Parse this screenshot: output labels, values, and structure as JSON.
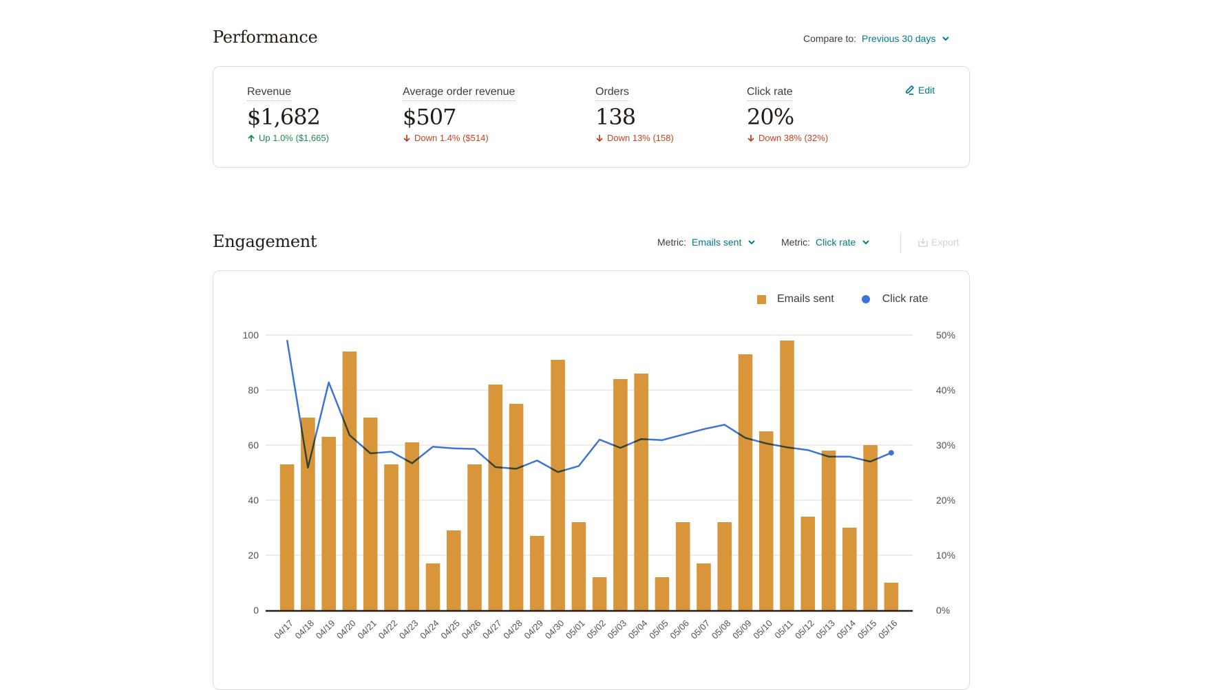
{
  "performance": {
    "title": "Performance",
    "compare_label": "Compare to:",
    "compare_value": "Previous 30 days",
    "edit_label": "Edit",
    "kpis": [
      {
        "label": "Revenue",
        "value": "$1,682",
        "delta": "Up 1.0% ($1,665)",
        "direction": "up"
      },
      {
        "label": "Average order revenue",
        "value": "$507",
        "delta": "Down 1.4% ($514)",
        "direction": "down"
      },
      {
        "label": "Orders",
        "value": "138",
        "delta": "Down 13% (158)",
        "direction": "down"
      },
      {
        "label": "Click rate",
        "value": "20%",
        "delta": "Down 38% (32%)",
        "direction": "down"
      }
    ]
  },
  "engagement": {
    "title": "Engagement",
    "metric1_label": "Metric:",
    "metric1_value": "Emails sent",
    "metric2_label": "Metric:",
    "metric2_value": "Click rate",
    "export_label": "Export",
    "legend": [
      {
        "name": "Emails sent",
        "color": "#d9953a",
        "shape": "square"
      },
      {
        "name": "Click rate",
        "color": "#3b74d6",
        "shape": "circle"
      }
    ]
  },
  "colors": {
    "accent": "#007c89",
    "up": "#1e8a4c",
    "down": "#c0441f",
    "bar": "#d9953a",
    "line": "#3b74d6"
  },
  "chart_data": {
    "type": "bar",
    "title": "Engagement",
    "categories": [
      "04/17",
      "04/18",
      "04/19",
      "04/20",
      "04/21",
      "04/22",
      "04/23",
      "04/24",
      "04/25",
      "04/26",
      "04/27",
      "04/28",
      "04/29",
      "04/30",
      "05/01",
      "05/02",
      "05/03",
      "05/04",
      "05/05",
      "05/06",
      "05/07",
      "05/08",
      "05/09",
      "05/10",
      "05/11",
      "05/12",
      "05/13",
      "05/14",
      "05/15",
      "05/16"
    ],
    "series": [
      {
        "name": "Emails sent",
        "type": "bar",
        "axis": "left",
        "values": [
          53,
          70,
          63,
          94,
          70,
          53,
          61,
          17,
          29,
          53,
          82,
          75,
          27,
          91,
          32,
          12,
          84,
          86,
          12,
          32,
          17,
          32,
          93,
          65,
          98,
          34,
          58,
          30,
          60,
          10
        ]
      },
      {
        "name": "Click rate",
        "type": "line",
        "axis": "right",
        "unit": "%",
        "values": [
          49.1,
          25.9,
          41.4,
          31.8,
          28.5,
          28.8,
          26.7,
          29.7,
          29.4,
          29.3,
          26.0,
          25.7,
          27.2,
          25.1,
          26.2,
          31.0,
          29.5,
          31.1,
          30.9,
          31.9,
          32.9,
          33.7,
          31.3,
          30.3,
          29.6,
          29.1,
          27.9,
          27.9,
          27.0,
          28.6
        ]
      }
    ],
    "y_left": {
      "ticks": [
        "0",
        "20",
        "40",
        "60",
        "80",
        "100"
      ],
      "range": [
        0,
        100
      ]
    },
    "y_right": {
      "ticks": [
        "0%",
        "10%",
        "20%",
        "30%",
        "40%",
        "50%"
      ],
      "range": [
        0,
        50
      ]
    },
    "xlabel": "",
    "ylabel": "",
    "grid": true,
    "legend_position": "top-right"
  }
}
